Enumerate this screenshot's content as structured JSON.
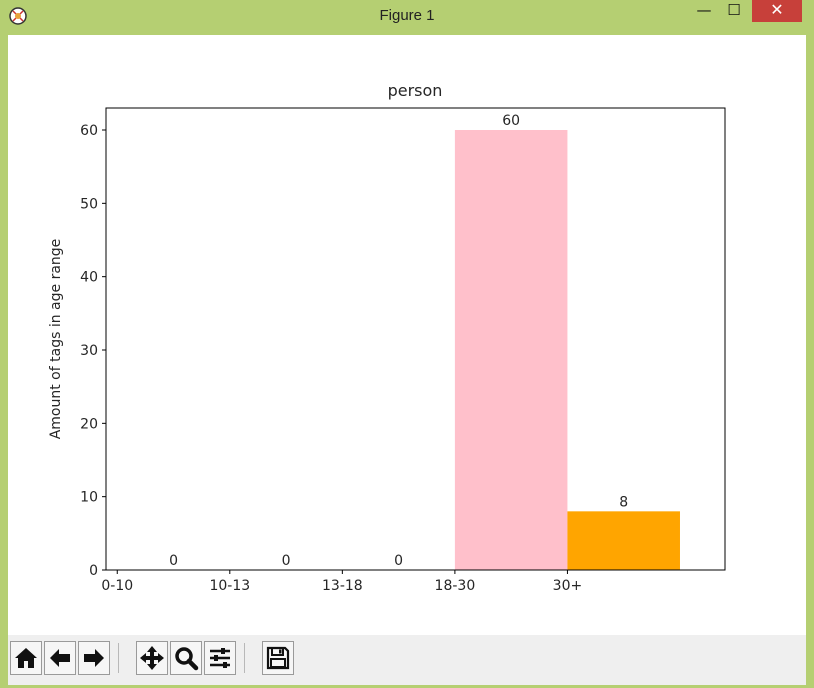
{
  "window": {
    "title": "Figure 1",
    "minimize_label": "—",
    "maximize_label": "☐",
    "close_label": "✕",
    "accent_color": "#b5cf72",
    "close_color": "#c7403a"
  },
  "toolbar": {
    "buttons": [
      {
        "name": "home",
        "icon": "home-icon"
      },
      {
        "name": "back",
        "icon": "arrow-left-icon"
      },
      {
        "name": "forward",
        "icon": "arrow-right-icon"
      },
      {
        "name": "pan",
        "icon": "move-icon"
      },
      {
        "name": "zoom",
        "icon": "magnifier-icon"
      },
      {
        "name": "configure-subplots",
        "icon": "sliders-icon"
      },
      {
        "name": "save",
        "icon": "floppy-icon"
      }
    ]
  },
  "chart_data": {
    "type": "bar",
    "title": "person",
    "xlabel": "",
    "ylabel": "Amount of tags in age range",
    "categories": [
      "0-10",
      "10-13",
      "13-18",
      "18-30",
      "30+"
    ],
    "values": [
      0,
      0,
      0,
      60,
      8
    ],
    "colors": [
      "#1f77b4",
      "#1f77b4",
      "#1f77b4",
      "#ffc0cb",
      "#ffa500"
    ],
    "data_labels": [
      "0",
      "0",
      "0",
      "60",
      "8"
    ],
    "ylim": [
      0,
      63
    ],
    "yticks": [
      0,
      10,
      20,
      30,
      40,
      50,
      60
    ],
    "grid": false,
    "bar_alignment": "edge"
  }
}
